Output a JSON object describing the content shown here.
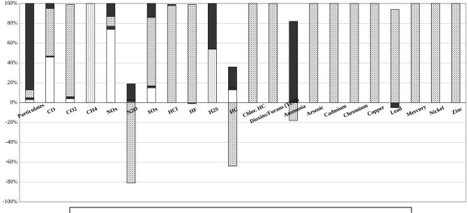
{
  "chart_data": {
    "type": "bar",
    "stacked": true,
    "categories": [
      "Particulates",
      "CO",
      "CO2",
      "CH4",
      "NOx",
      "N2O",
      "SOx",
      "HCl",
      "HF",
      "H2S",
      "HC",
      "Chlor. HC",
      "Dioxins/Furans (TEQ)",
      "Ammonia",
      "Arsenic",
      "Cadmium",
      "Chromium",
      "Copper",
      "Lead",
      "Mercury",
      "Nickel",
      "Zinc"
    ],
    "series": [
      {
        "color": "#ffffff",
        "pattern": "solid",
        "values": [
          3,
          46,
          4,
          0,
          74,
          1,
          15,
          0,
          0,
          0,
          13,
          0,
          0,
          0,
          0,
          0,
          0,
          0,
          0,
          0,
          0,
          0
        ]
      },
      {
        "color": "#ffffff",
        "pattern": "vlines",
        "values": [
          0,
          0,
          0,
          100,
          0,
          0,
          0,
          0,
          0,
          54,
          0,
          0,
          0,
          0,
          0,
          0,
          0,
          0,
          0,
          0,
          0,
          0
        ]
      },
      {
        "color": "#333333",
        "pattern": "solid",
        "values": [
          2,
          1,
          2,
          0,
          3,
          2,
          2,
          0,
          0,
          0,
          2,
          0,
          0,
          0,
          0,
          0,
          0,
          0,
          0,
          0,
          0,
          0
        ]
      },
      {
        "color": "#d8d8d8",
        "pattern": "dots",
        "values": [
          8,
          48,
          93,
          0,
          10,
          -81,
          69,
          98,
          99,
          0,
          -64,
          100,
          100,
          -18,
          100,
          100,
          100,
          100,
          94,
          100,
          100,
          100
        ]
      },
      {
        "color": "#333333",
        "pattern": "solid",
        "values": [
          87,
          5,
          0,
          0,
          13,
          16,
          14,
          1,
          -1,
          46,
          21,
          0,
          0,
          82,
          0,
          0,
          0,
          0,
          -5,
          0,
          0,
          0
        ]
      }
    ],
    "ylim": [
      -100,
      100
    ],
    "yticks": [
      {
        "value": -100,
        "label": "-100%"
      },
      {
        "value": -80,
        "label": "-80%"
      },
      {
        "value": -60,
        "label": "-60%"
      },
      {
        "value": -40,
        "label": "-40%"
      },
      {
        "value": -20,
        "label": "-20%"
      },
      {
        "value": 0,
        "label": "0%"
      },
      {
        "value": 20,
        "label": "20%"
      },
      {
        "value": 40,
        "label": "40%"
      },
      {
        "value": 60,
        "label": "60%"
      },
      {
        "value": 80,
        "label": "80%"
      },
      {
        "value": 100,
        "label": "100%"
      }
    ],
    "grid": true
  }
}
